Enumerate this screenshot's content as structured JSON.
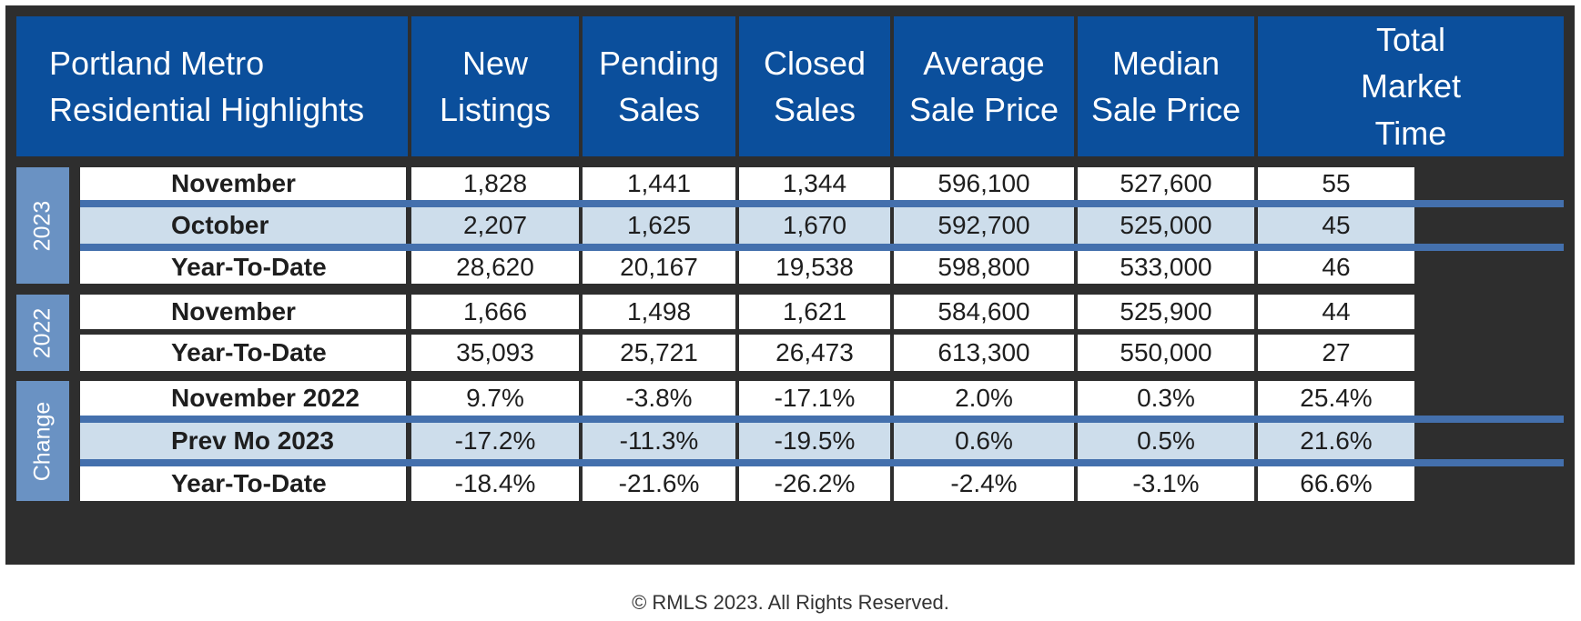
{
  "header": {
    "title_line1": "Portland Metro",
    "title_line2": "Residential Highlights",
    "columns": [
      {
        "line1": "New",
        "line2": "Listings"
      },
      {
        "line1": "Pending",
        "line2": "Sales"
      },
      {
        "line1": "Closed",
        "line2": "Sales"
      },
      {
        "line1": "Average",
        "line2": "Sale Price"
      },
      {
        "line1": "Median",
        "line2": "Sale Price"
      },
      {
        "line1": "Total",
        "line2": "Market",
        "line3": "Time"
      }
    ]
  },
  "groups": [
    {
      "label": "2023",
      "rows": [
        {
          "label": "November",
          "values": [
            "1,828",
            "1,441",
            "1,344",
            "596,100",
            "527,600",
            "55"
          ]
        },
        {
          "label": "October",
          "values": [
            "2,207",
            "1,625",
            "1,670",
            "592,700",
            "525,000",
            "45"
          ]
        },
        {
          "label": "Year-To-Date",
          "values": [
            "28,620",
            "20,167",
            "19,538",
            "598,800",
            "533,000",
            "46"
          ]
        }
      ]
    },
    {
      "label": "2022",
      "rows": [
        {
          "label": "November",
          "values": [
            "1,666",
            "1,498",
            "1,621",
            "584,600",
            "525,900",
            "44"
          ]
        },
        {
          "label": "Year-To-Date",
          "values": [
            "35,093",
            "25,721",
            "26,473",
            "613,300",
            "550,000",
            "27"
          ]
        }
      ]
    },
    {
      "label": "Change",
      "rows": [
        {
          "label": "November 2022",
          "values": [
            "9.7%",
            "-3.8%",
            "-17.1%",
            "2.0%",
            "0.3%",
            "25.4%"
          ]
        },
        {
          "label": "Prev Mo 2023",
          "values": [
            "-17.2%",
            "-11.3%",
            "-19.5%",
            "0.6%",
            "0.5%",
            "21.6%"
          ]
        },
        {
          "label": "Year-To-Date",
          "values": [
            "-18.4%",
            "-21.6%",
            "-26.2%",
            "-2.4%",
            "-3.1%",
            "66.6%"
          ]
        }
      ]
    }
  ],
  "footer": "© RMLS 2023. All Rights Reserved.",
  "colors": {
    "header_bg": "#0b4f9c",
    "group_bg": "#6a92c3",
    "shaded_row": "#cdddeb",
    "separator": "#4470ad",
    "frame": "#2e2e2e"
  }
}
